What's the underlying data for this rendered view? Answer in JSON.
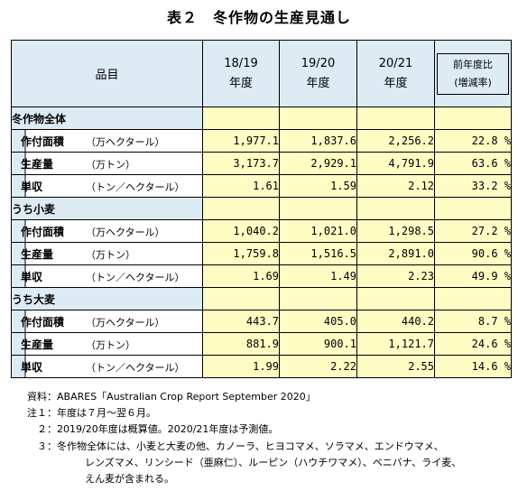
{
  "title": "表２　冬作物の生産見通し",
  "header": {
    "item": "品目",
    "years": [
      {
        "line1": "18/19",
        "line2": "年度"
      },
      {
        "line1": "19/20",
        "line2": "年度"
      },
      {
        "line1": "20/21",
        "line2": "年度"
      }
    ],
    "ratio_line1": "前年度比",
    "ratio_line2": "(増減率)"
  },
  "groups": [
    {
      "name": "冬作物全体",
      "rows": [
        {
          "label": "作付面積",
          "unit": "（万ヘクタール）",
          "v1": "1,977.1",
          "v2": "1,837.6",
          "v3": "2,256.2",
          "ratio": "22.8 %"
        },
        {
          "label": "生産量",
          "unit": "（万トン）",
          "v1": "3,173.7",
          "v2": "2,929.1",
          "v3": "4,791.9",
          "ratio": "63.6 %"
        },
        {
          "label": "単収",
          "unit": "（トン／ヘクタール）",
          "v1": "1.61",
          "v2": "1.59",
          "v3": "2.12",
          "ratio": "33.2 %"
        }
      ]
    },
    {
      "name": "うち小麦",
      "rows": [
        {
          "label": "作付面積",
          "unit": "（万ヘクタール）",
          "v1": "1,040.2",
          "v2": "1,021.0",
          "v3": "1,298.5",
          "ratio": "27.2 %"
        },
        {
          "label": "生産量",
          "unit": "（万トン）",
          "v1": "1,759.8",
          "v2": "1,516.5",
          "v3": "2,891.0",
          "ratio": "90.6 %"
        },
        {
          "label": "単収",
          "unit": "（トン／ヘクタール）",
          "v1": "1.69",
          "v2": "1.49",
          "v3": "2.23",
          "ratio": "49.9 %"
        }
      ]
    },
    {
      "name": "うち大麦",
      "rows": [
        {
          "label": "作付面積",
          "unit": "（万ヘクタール）",
          "v1": "443.7",
          "v2": "405.0",
          "v3": "440.2",
          "ratio": "8.7 %"
        },
        {
          "label": "生産量",
          "unit": "（万トン）",
          "v1": "881.9",
          "v2": "900.1",
          "v3": "1,121.7",
          "ratio": "24.6 %"
        },
        {
          "label": "単収",
          "unit": "（トン／ヘクタール）",
          "v1": "1.99",
          "v2": "2.22",
          "v3": "2.55",
          "ratio": "14.6 %"
        }
      ]
    }
  ],
  "notes": {
    "source": "資料：ABARES「Australian Crop Report September 2020」",
    "note1": "注１：年度は７月～翌６月。",
    "note2": "　２：2019/20年度は概算値。2020/21年度は予測値。",
    "note3": "　３：冬作物全体には、小麦と大麦の他、カノーラ、ヒヨコマメ、ソラマメ、エンドウマメ、",
    "note3b": "レンズマメ、リンシード（亜麻仁）、ルーピン（ハウチワマメ）、ベニバナ、ライ麦、",
    "note3c": "えん麦が含まれる。"
  }
}
